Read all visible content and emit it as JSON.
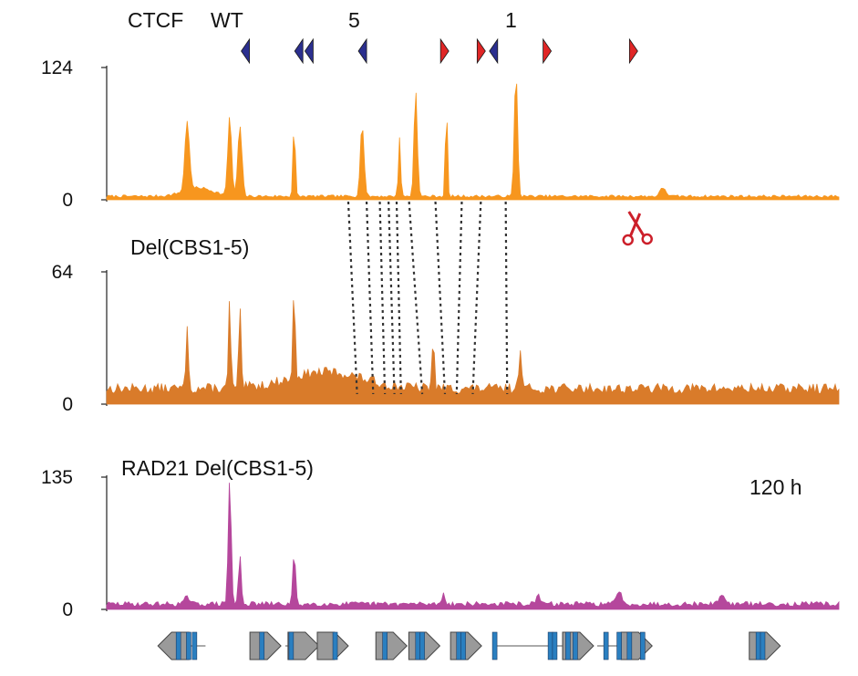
{
  "chart_data": {
    "type": "area",
    "ctcf_motif_labels": {
      "group": "CTCF",
      "genotype": "WT",
      "site_5": "5",
      "site_1": "1"
    },
    "ctcf_motifs": [
      {
        "x": 0.19,
        "orientation": "reverse",
        "color": "#2b2f8f"
      },
      {
        "x": 0.263,
        "orientation": "reverse",
        "color": "#2b2f8f"
      },
      {
        "x": 0.277,
        "orientation": "reverse",
        "color": "#2b2f8f"
      },
      {
        "x": 0.35,
        "orientation": "reverse",
        "color": "#2b2f8f"
      },
      {
        "x": 0.461,
        "orientation": "forward",
        "color": "#e02626"
      },
      {
        "x": 0.511,
        "orientation": "forward",
        "color": "#e02626"
      },
      {
        "x": 0.529,
        "orientation": "reverse",
        "color": "#2b2f8f"
      },
      {
        "x": 0.601,
        "orientation": "forward",
        "color": "#e02626"
      },
      {
        "x": 0.719,
        "orientation": "forward",
        "color": "#e02626"
      }
    ],
    "tracks": [
      {
        "id": "wt",
        "label": "",
        "color": "#f7961e",
        "ylim": [
          0,
          124
        ],
        "yticks": [
          "0",
          "124"
        ],
        "baseline": 2,
        "noise": 2.5,
        "seed": 7,
        "peaks": [
          [
            0.11,
            65,
            0.003
          ],
          [
            0.168,
            75,
            0.0025
          ],
          [
            0.182,
            65,
            0.0028
          ],
          [
            0.256,
            70,
            0.0015
          ],
          [
            0.349,
            68,
            0.0025
          ],
          [
            0.4,
            55,
            0.0015
          ],
          [
            0.422,
            100,
            0.0022
          ],
          [
            0.464,
            93,
            0.0013
          ],
          [
            0.559,
            118,
            0.0022
          ],
          [
            0.76,
            8,
            0.004
          ],
          [
            0.125,
            8,
            0.02
          ]
        ]
      },
      {
        "id": "del",
        "label": "Del(CBS1-5)",
        "color": "#d97b2a",
        "ylim": [
          0,
          64
        ],
        "yticks": [
          "0",
          "64"
        ],
        "baseline": 5,
        "noise": 5,
        "seed": 13,
        "peaks": [
          [
            0.11,
            28,
            0.0018
          ],
          [
            0.168,
            43,
            0.0015
          ],
          [
            0.182,
            38,
            0.0015
          ],
          [
            0.256,
            44,
            0.0015
          ],
          [
            0.446,
            26,
            0.0015
          ],
          [
            0.565,
            20,
            0.002
          ],
          [
            0.3,
            8,
            0.05
          ]
        ]
      },
      {
        "id": "rad21",
        "label": "RAD21  Del(CBS1-5)",
        "color": "#b5479c",
        "ylim": [
          0,
          135
        ],
        "yticks": [
          "0",
          "135"
        ],
        "baseline": 3,
        "noise": 5,
        "seed": 29,
        "annotation": "120 h",
        "peaks": [
          [
            0.11,
            8,
            0.003
          ],
          [
            0.168,
            128,
            0.002
          ],
          [
            0.182,
            50,
            0.0018
          ],
          [
            0.256,
            53,
            0.0018
          ],
          [
            0.46,
            12,
            0.002
          ],
          [
            0.7,
            12,
            0.004
          ],
          [
            0.84,
            10,
            0.004
          ],
          [
            0.59,
            8,
            0.003
          ]
        ]
      }
    ],
    "deletion_links": [
      [
        0.33,
        0.342
      ],
      [
        0.355,
        0.364
      ],
      [
        0.373,
        0.38
      ],
      [
        0.385,
        0.393
      ],
      [
        0.396,
        0.402
      ],
      [
        0.413,
        0.431
      ],
      [
        0.449,
        0.462
      ],
      [
        0.485,
        0.478
      ],
      [
        0.511,
        0.5
      ],
      [
        0.545,
        0.547
      ]
    ],
    "scissors": {
      "x": 0.575,
      "color": "#cc1f2a"
    },
    "genes": [
      {
        "start": 0.07,
        "end": 0.135,
        "strand": "-",
        "exons": [
          0.098,
          0.112,
          0.12
        ]
      },
      {
        "start": 0.205,
        "end": 0.238,
        "strand": "+",
        "exons": [
          0.212
        ]
      },
      {
        "start": 0.244,
        "end": 0.29,
        "strand": "+",
        "exons": [
          0.252
        ]
      },
      {
        "start": 0.305,
        "end": 0.33,
        "strand": "+",
        "exons": [
          0.312
        ]
      },
      {
        "start": 0.375,
        "end": 0.41,
        "strand": "+",
        "exons": [
          0.38
        ]
      },
      {
        "start": 0.415,
        "end": 0.455,
        "strand": "+",
        "exons": [
          0.425,
          0.431
        ]
      },
      {
        "start": 0.475,
        "end": 0.512,
        "strand": "+",
        "exons": [
          0.481,
          0.487
        ]
      },
      {
        "start": 0.53,
        "end": 0.665,
        "strand": "+",
        "exons": [
          0.53,
          0.606,
          0.612,
          0.63,
          0.64
        ]
      },
      {
        "start": 0.67,
        "end": 0.745,
        "strand": "+",
        "exons": [
          0.682,
          0.7,
          0.714,
          0.732
        ]
      },
      {
        "start": 0.88,
        "end": 0.92,
        "strand": "+",
        "exons": [
          0.89,
          0.896
        ]
      }
    ]
  }
}
